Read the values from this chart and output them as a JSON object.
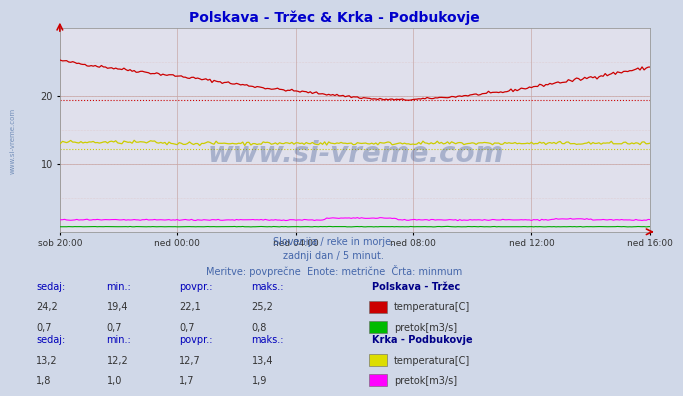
{
  "title": "Polskava - Tržec & Krka - Podbukovje",
  "title_color": "#0000cc",
  "bg_color": "#d0d8e8",
  "plot_bg_color": "#e0e0ec",
  "grid_color_major": "#c8a8a8",
  "grid_color_minor": "#ddc0c0",
  "xlabel_ticks": [
    "sob 20:00",
    "ned 00:00",
    "ned 04:00",
    "ned 08:00",
    "ned 12:00",
    "ned 16:00"
  ],
  "xlabel_pos_frac": [
    0.0,
    0.2,
    0.4,
    0.6,
    0.8,
    1.0
  ],
  "total_points": 289,
  "ylim": [
    0,
    30
  ],
  "yticks": [
    10,
    20
  ],
  "subtitle_lines": [
    "Slovenija / reke in morje.",
    "zadnji dan / 5 minut.",
    "Meritve: povprečne  Enote: metrične  Črta: minmum"
  ],
  "subtitle_color": "#4466aa",
  "watermark": "www.si-vreme.com",
  "watermark_color": "#1a3a7a",
  "watermark_alpha": 0.28,
  "col_headers": [
    "sedaj:",
    "min.:",
    "povpr.:",
    "maks.:"
  ],
  "col_header_color": "#0000bb",
  "station_name_color": "#000088",
  "value_color": "#333333",
  "legend_entries": [
    {
      "station": "Polskava - Tržec",
      "series": [
        {
          "label": "temperatura[C]",
          "color": "#cc0000",
          "sedaj": "24,2",
          "min": "19,4",
          "povpr": "22,1",
          "maks": "25,2"
        },
        {
          "label": "pretok[m3/s]",
          "color": "#00bb00",
          "sedaj": "0,7",
          "min": "0,7",
          "povpr": "0,7",
          "maks": "0,8"
        }
      ]
    },
    {
      "station": "Krka - Podbukovje",
      "series": [
        {
          "label": "temperatura[C]",
          "color": "#dddd00",
          "sedaj": "13,2",
          "min": "12,2",
          "povpr": "12,7",
          "maks": "13,4"
        },
        {
          "label": "pretok[m3/s]",
          "color": "#ff00ff",
          "sedaj": "1,8",
          "min": "1,0",
          "povpr": "1,7",
          "maks": "1,9"
        }
      ]
    }
  ],
  "polskava_temp_color": "#cc0000",
  "polskava_flow_color": "#00aa00",
  "krka_temp_color": "#cccc00",
  "krka_flow_color": "#ff00ff",
  "polskava_temp_min": 19.4,
  "krka_temp_min": 12.2,
  "side_label": "www.si-vreme.com",
  "side_label_color": "#5577aa",
  "arrow_color": "#cc0000"
}
